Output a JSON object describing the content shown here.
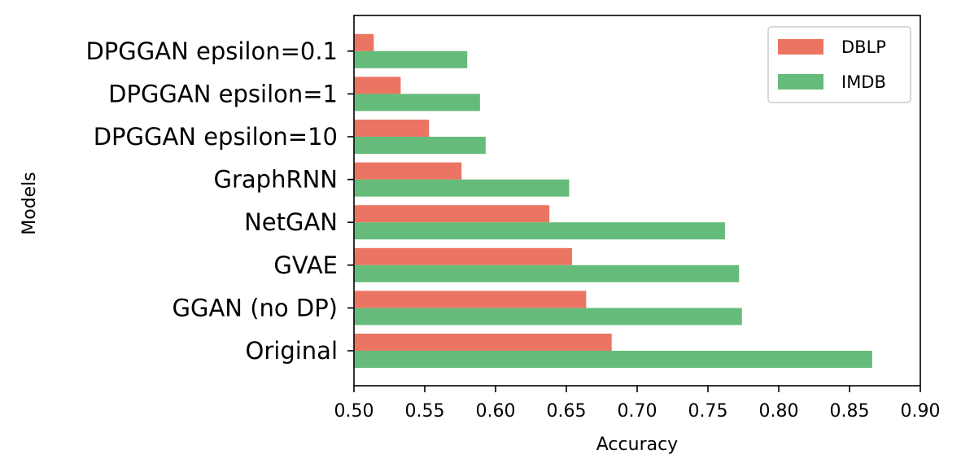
{
  "chart_data": {
    "type": "bar",
    "orientation": "horizontal",
    "categories": [
      "Original",
      "GGAN (no DP)",
      "GVAE",
      "NetGAN",
      "GraphRNN",
      "DPGGAN epsilon=10",
      "DPGGAN epsilon=1",
      "DPGGAN epsilon=0.1"
    ],
    "series": [
      {
        "name": "DBLP",
        "color": "#eb7562",
        "values": [
          0.682,
          0.664,
          0.654,
          0.638,
          0.576,
          0.553,
          0.533,
          0.514
        ]
      },
      {
        "name": "IMDB",
        "color": "#65bb7a",
        "values": [
          0.866,
          0.774,
          0.772,
          0.762,
          0.652,
          0.593,
          0.589,
          0.58
        ]
      }
    ],
    "xlabel": "Accuracy",
    "ylabel": "Models",
    "xlim": [
      0.5,
      0.9
    ],
    "xticks": [
      "0.50",
      "0.55",
      "0.60",
      "0.65",
      "0.70",
      "0.75",
      "0.80",
      "0.85",
      "0.90"
    ],
    "grid": false,
    "legend_position": "upper right"
  }
}
